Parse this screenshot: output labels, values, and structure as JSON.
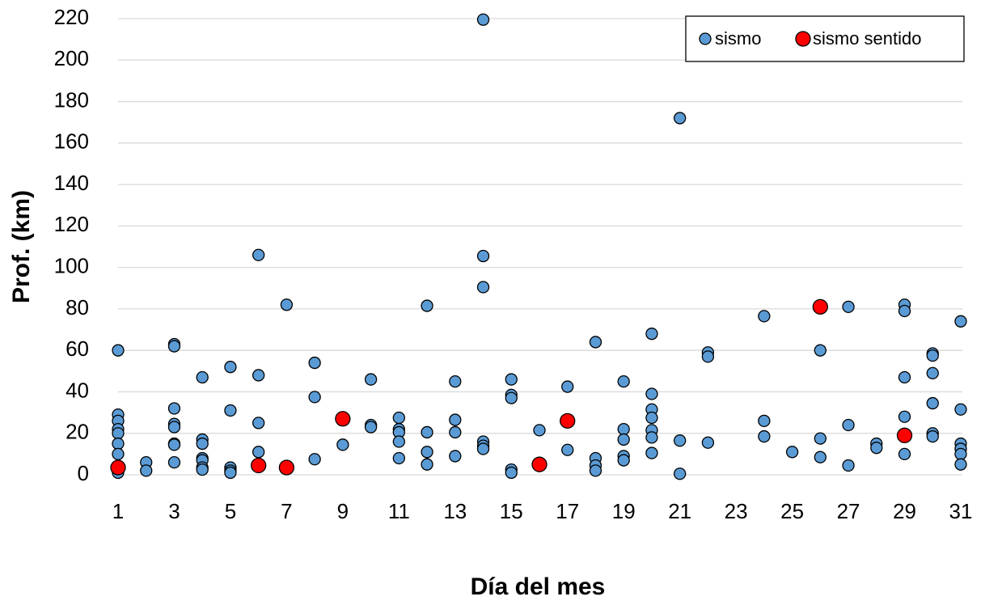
{
  "chart_data": {
    "type": "scatter",
    "xlabel": "Día del mes",
    "ylabel": "Prof. (km)",
    "xlim": [
      1,
      31
    ],
    "ylim": [
      0,
      220
    ],
    "xticks": [
      1,
      3,
      5,
      7,
      9,
      11,
      13,
      15,
      17,
      19,
      21,
      23,
      25,
      27,
      29,
      31
    ],
    "yticks": [
      0,
      20,
      40,
      60,
      80,
      100,
      120,
      140,
      160,
      180,
      200,
      220
    ],
    "grid": true,
    "legend": "upper right",
    "series": [
      {
        "name": "sismo",
        "color": "#5b9bd5",
        "x": [
          1,
          1,
          1,
          1,
          1,
          1,
          1,
          1,
          1,
          2,
          2,
          3,
          3,
          3,
          3,
          3,
          3,
          3,
          3,
          4,
          4,
          4,
          4,
          4,
          4,
          4,
          5,
          5,
          5,
          5,
          5,
          6,
          6,
          6,
          6,
          7,
          8,
          8,
          8,
          9,
          10,
          10,
          10,
          11,
          11,
          11,
          11,
          11,
          12,
          12,
          12,
          12,
          13,
          13,
          13,
          13,
          14,
          14,
          14,
          14,
          14,
          14,
          15,
          15,
          15,
          15,
          15,
          16,
          17,
          17,
          18,
          18,
          18,
          18,
          19,
          19,
          19,
          19,
          19,
          20,
          20,
          20,
          20,
          20,
          20,
          20,
          21,
          21,
          21,
          22,
          22,
          22,
          24,
          24,
          24,
          25,
          26,
          26,
          26,
          27,
          27,
          27,
          28,
          28,
          29,
          29,
          29,
          29,
          29,
          30,
          30,
          30,
          30,
          30,
          30,
          31,
          31,
          31,
          31,
          31,
          31
        ],
        "values": [
          60,
          29,
          26,
          22,
          20,
          15,
          10,
          3,
          1,
          6,
          2,
          63,
          62,
          32,
          24.5,
          23,
          15,
          14.5,
          6,
          47,
          17,
          15,
          8,
          7,
          3.5,
          2.5,
          52,
          31,
          3.5,
          2,
          1,
          106,
          48,
          25,
          11,
          82,
          54,
          37.5,
          7.5,
          14.5,
          46,
          24,
          23,
          27.5,
          22,
          20.5,
          16,
          8,
          81.5,
          20.5,
          11,
          5,
          45,
          26.5,
          20.5,
          9,
          219.5,
          105.5,
          90.5,
          16,
          14,
          12.5,
          46,
          38.5,
          37,
          2.5,
          1,
          21.5,
          42.5,
          12,
          64,
          8,
          4.5,
          2,
          45,
          22,
          17,
          9,
          7,
          68,
          39,
          31.5,
          27.5,
          21.5,
          18,
          10.5,
          172,
          16.5,
          0.5,
          59,
          57,
          15.5,
          76.5,
          26,
          18.5,
          11,
          60,
          17.5,
          8.5,
          81,
          24,
          4.5,
          15,
          13,
          82,
          79,
          47,
          28,
          10,
          58.5,
          57.5,
          49,
          34.5,
          20,
          18.5,
          74,
          31.5,
          15,
          12.5,
          10,
          5
        ]
      },
      {
        "name": "sismo sentido",
        "color": "#ff0000",
        "x": [
          1,
          6,
          7,
          9,
          16,
          17,
          26,
          29
        ],
        "values": [
          3.5,
          4.5,
          3.5,
          27,
          5,
          26,
          81,
          19
        ]
      }
    ]
  }
}
